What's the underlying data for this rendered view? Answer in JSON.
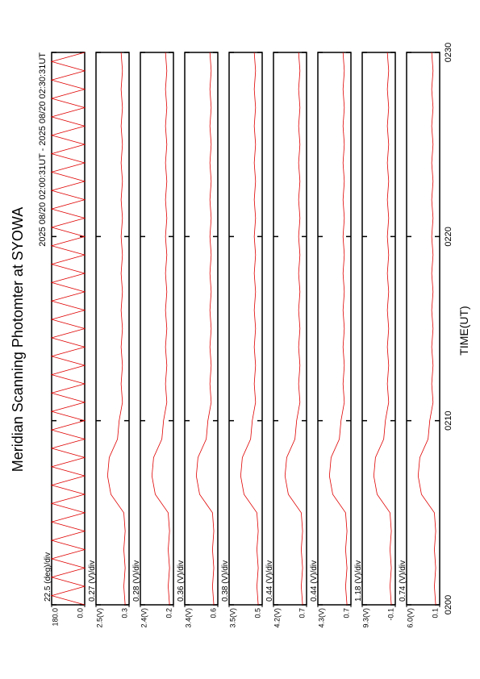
{
  "page": {
    "title": "Meridian Scanning Photomter at SYOWA",
    "subtitle": "2025 08/20 02:00:31UT - 2025 08/20 02:30:31UT",
    "x_label": "TIME(UT)",
    "xlim": [
      0,
      30
    ],
    "xticks": [
      {
        "value": 0,
        "label": "0200"
      },
      {
        "value": 10,
        "label": "0210"
      },
      {
        "value": 20,
        "label": "0220"
      },
      {
        "value": 30,
        "label": "0230"
      }
    ]
  },
  "chart_data": [
    {
      "type": "line",
      "color": "#e00000",
      "annotation": "22.5 (deg)/div",
      "ylim": [
        0,
        180
      ],
      "yticks": [
        {
          "value": 180,
          "label": "180.0"
        },
        {
          "value": 0,
          "label": "0.0"
        }
      ],
      "x": [
        0,
        0.5,
        1,
        1.5,
        2,
        2.5,
        3,
        3.5,
        4,
        4.5,
        5,
        5.5,
        6,
        6.5,
        7,
        7.5,
        8,
        8.5,
        9,
        9.5,
        10,
        10.5,
        11,
        11.5,
        12,
        12.5,
        13,
        13.5,
        14,
        14.5,
        15,
        15.5,
        16,
        16.5,
        17,
        17.5,
        18,
        18.5,
        19,
        19.5,
        20,
        20.5,
        21,
        21.5,
        22,
        22.5,
        23,
        23.5,
        24,
        24.5,
        25,
        25.5,
        26,
        26.5,
        27,
        27.5,
        28,
        28.5,
        29,
        29.5,
        30
      ],
      "values": [
        0,
        180,
        0,
        180,
        0,
        180,
        0,
        180,
        0,
        180,
        0,
        180,
        0,
        180,
        0,
        180,
        0,
        180,
        0,
        180,
        0,
        180,
        0,
        180,
        0,
        180,
        0,
        180,
        0,
        180,
        0,
        180,
        0,
        180,
        0,
        180,
        0,
        180,
        0,
        180,
        0,
        180,
        0,
        180,
        0,
        180,
        0,
        180,
        0,
        180,
        0,
        180,
        0,
        180,
        0,
        180,
        0,
        180,
        0,
        180,
        0
      ]
    },
    {
      "type": "line",
      "color": "#e00000",
      "annotation": "0.27 (V)/div",
      "ylim": [
        0.3,
        2.5
      ],
      "yticks": [
        {
          "value": 2.5,
          "label": "2.5(V)"
        },
        0.3
      ],
      "x": [
        0,
        1,
        2,
        3,
        4,
        5,
        6,
        7,
        8,
        9,
        10,
        11,
        12,
        13,
        14,
        15,
        16,
        17,
        18,
        19,
        20,
        21,
        22,
        23,
        24,
        25,
        26,
        27,
        28,
        29,
        30
      ],
      "values": [
        0.56,
        0.65,
        0.56,
        0.65,
        0.56,
        0.65,
        1.51,
        1.73,
        1.62,
        1.07,
        0.96,
        0.74,
        0.83,
        0.74,
        0.83,
        0.74,
        0.83,
        0.74,
        0.83,
        0.74,
        0.83,
        0.74,
        0.83,
        0.74,
        0.83,
        0.74,
        0.83,
        0.74,
        0.83,
        0.74,
        0.83
      ]
    },
    {
      "type": "line",
      "color": "#e00000",
      "annotation": "0.28 (V)/div",
      "ylim": [
        0.2,
        2.4
      ],
      "yticks": [
        {
          "value": 2.4,
          "label": "2.4(V)"
        },
        0.2
      ],
      "x": [
        0,
        1,
        2,
        3,
        4,
        5,
        6,
        7,
        8,
        9,
        10,
        11,
        12,
        13,
        14,
        15,
        16,
        17,
        18,
        19,
        20,
        21,
        22,
        23,
        24,
        25,
        26,
        27,
        28,
        29,
        30
      ],
      "values": [
        0.46,
        0.55,
        0.46,
        0.55,
        0.46,
        0.55,
        1.41,
        1.63,
        1.52,
        0.97,
        0.86,
        0.64,
        0.73,
        0.64,
        0.73,
        0.64,
        0.73,
        0.64,
        0.73,
        0.64,
        0.73,
        0.64,
        0.73,
        0.64,
        0.73,
        0.64,
        0.73,
        0.64,
        0.73,
        0.64,
        0.73
      ]
    },
    {
      "type": "line",
      "color": "#e00000",
      "annotation": "0.36 (V)/div",
      "ylim": [
        0.6,
        3.4
      ],
      "yticks": [
        {
          "value": 3.4,
          "label": "3.4(V)"
        },
        0.6
      ],
      "x": [
        0,
        1,
        2,
        3,
        4,
        5,
        6,
        7,
        8,
        9,
        10,
        11,
        12,
        13,
        14,
        15,
        16,
        17,
        18,
        19,
        20,
        21,
        22,
        23,
        24,
        25,
        26,
        27,
        28,
        29,
        30
      ],
      "values": [
        0.94,
        1.05,
        0.94,
        1.05,
        0.94,
        1.05,
        2.14,
        2.42,
        2.28,
        1.58,
        1.44,
        1.16,
        1.27,
        1.16,
        1.27,
        1.16,
        1.27,
        1.16,
        1.27,
        1.16,
        1.27,
        1.16,
        1.27,
        1.16,
        1.27,
        1.16,
        1.27,
        1.16,
        1.27,
        1.16,
        1.27
      ]
    },
    {
      "type": "line",
      "color": "#e00000",
      "annotation": "0.38 (V)/div",
      "ylim": [
        0.5,
        3.5
      ],
      "yticks": [
        {
          "value": 3.5,
          "label": "3.5(V)"
        },
        0.5
      ],
      "x": [
        0,
        1,
        2,
        3,
        4,
        5,
        6,
        7,
        8,
        9,
        10,
        11,
        12,
        13,
        14,
        15,
        16,
        17,
        18,
        19,
        20,
        21,
        22,
        23,
        24,
        25,
        26,
        27,
        28,
        29,
        30
      ],
      "values": [
        0.86,
        0.98,
        0.86,
        0.98,
        0.86,
        0.98,
        2.15,
        2.45,
        2.3,
        1.55,
        1.4,
        1.1,
        1.22,
        1.1,
        1.22,
        1.1,
        1.22,
        1.1,
        1.22,
        1.1,
        1.22,
        1.1,
        1.22,
        1.1,
        1.22,
        1.1,
        1.22,
        1.1,
        1.22,
        1.1,
        1.22
      ]
    },
    {
      "type": "line",
      "color": "#e00000",
      "annotation": "0.44 (V)/div",
      "ylim": [
        0.7,
        4.2
      ],
      "yticks": [
        {
          "value": 4.2,
          "label": "4.2(V)"
        },
        0.7
      ],
      "x": [
        0,
        1,
        2,
        3,
        4,
        5,
        6,
        7,
        8,
        9,
        10,
        11,
        12,
        13,
        14,
        15,
        16,
        17,
        18,
        19,
        20,
        21,
        22,
        23,
        24,
        25,
        26,
        27,
        28,
        29,
        30
      ],
      "values": [
        1.12,
        1.26,
        1.12,
        1.26,
        1.12,
        1.26,
        2.63,
        2.98,
        2.8,
        1.93,
        1.75,
        1.4,
        1.54,
        1.4,
        1.54,
        1.4,
        1.54,
        1.4,
        1.54,
        1.4,
        1.54,
        1.4,
        1.54,
        1.4,
        1.54,
        1.4,
        1.54,
        1.4,
        1.54,
        1.4,
        1.54
      ]
    },
    {
      "type": "line",
      "color": "#e00000",
      "annotation": "0.44 (V)/div",
      "ylim": [
        0.7,
        4.3
      ],
      "yticks": [
        {
          "value": 4.3,
          "label": "4.3(V)"
        },
        0.7
      ],
      "x": [
        0,
        1,
        2,
        3,
        4,
        5,
        6,
        7,
        8,
        9,
        10,
        11,
        12,
        13,
        14,
        15,
        16,
        17,
        18,
        19,
        20,
        21,
        22,
        23,
        24,
        25,
        26,
        27,
        28,
        29,
        30
      ],
      "values": [
        1.13,
        1.28,
        1.13,
        1.28,
        1.13,
        1.28,
        2.68,
        3.04,
        2.86,
        1.96,
        1.78,
        1.42,
        1.56,
        1.42,
        1.56,
        1.42,
        1.56,
        1.42,
        1.56,
        1.42,
        1.56,
        1.42,
        1.56,
        1.42,
        1.56,
        1.42,
        1.56,
        1.42,
        1.56,
        1.42,
        1.56
      ]
    },
    {
      "type": "line",
      "color": "#e00000",
      "annotation": "1.18 (V)/div",
      "ylim": [
        -0.1,
        9.3
      ],
      "yticks": [
        {
          "value": 9.3,
          "label": "9.3(V)"
        },
        -0.1
      ],
      "x": [
        0,
        1,
        2,
        3,
        4,
        5,
        6,
        7,
        8,
        9,
        10,
        11,
        12,
        13,
        14,
        15,
        16,
        17,
        18,
        19,
        20,
        21,
        22,
        23,
        24,
        25,
        26,
        27,
        28,
        29,
        30
      ],
      "values": [
        1.03,
        1.4,
        1.03,
        1.4,
        1.03,
        1.4,
        5.07,
        6.01,
        5.54,
        3.19,
        2.72,
        1.78,
        2.16,
        1.78,
        2.16,
        1.78,
        2.16,
        1.78,
        2.16,
        1.78,
        2.16,
        1.78,
        2.16,
        1.78,
        2.16,
        1.78,
        2.16,
        1.78,
        2.16,
        1.78,
        2.16
      ]
    },
    {
      "type": "line",
      "color": "#e00000",
      "annotation": "0.74 (V)/div",
      "ylim": [
        0.1,
        6.0
      ],
      "yticks": [
        {
          "value": 6.0,
          "label": "6.0(V)"
        },
        0.1
      ],
      "x": [
        0,
        1,
        2,
        3,
        4,
        5,
        6,
        7,
        8,
        9,
        10,
        11,
        12,
        13,
        14,
        15,
        16,
        17,
        18,
        19,
        20,
        21,
        22,
        23,
        24,
        25,
        26,
        27,
        28,
        29,
        30
      ],
      "values": [
        0.81,
        1.04,
        0.81,
        1.04,
        0.81,
        1.04,
        3.35,
        3.94,
        3.64,
        2.17,
        1.87,
        1.28,
        1.52,
        1.28,
        1.52,
        1.28,
        1.52,
        1.28,
        1.52,
        1.28,
        1.52,
        1.28,
        1.52,
        1.28,
        1.52,
        1.28,
        1.52,
        1.28,
        1.52,
        1.28,
        1.52
      ]
    }
  ]
}
